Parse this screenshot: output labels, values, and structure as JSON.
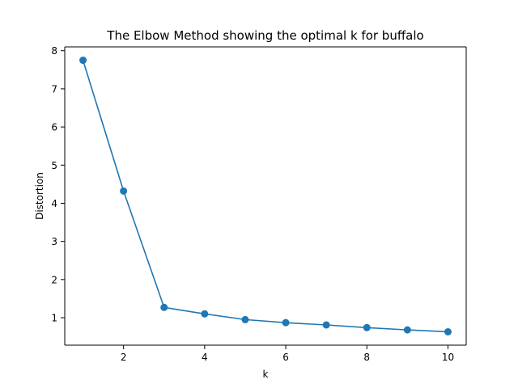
{
  "chart_data": {
    "type": "line",
    "title": "The Elbow Method showing the optimal k for buffalo",
    "xlabel": "k",
    "ylabel": "Distortion",
    "x": [
      1,
      2,
      3,
      4,
      5,
      6,
      7,
      8,
      9,
      10
    ],
    "series": [
      {
        "values": [
          7.75,
          4.32,
          1.27,
          1.1,
          0.95,
          0.87,
          0.81,
          0.74,
          0.68,
          0.63
        ],
        "color": "#1f77b4",
        "marker": "circle"
      }
    ],
    "xlim": [
      0.55,
      10.45
    ],
    "ylim": [
      0.28,
      8.1
    ],
    "xticks": [
      2,
      4,
      6,
      8,
      10
    ],
    "yticks": [
      1,
      2,
      3,
      4,
      5,
      6,
      7,
      8
    ],
    "grid": false,
    "legend": "none"
  }
}
